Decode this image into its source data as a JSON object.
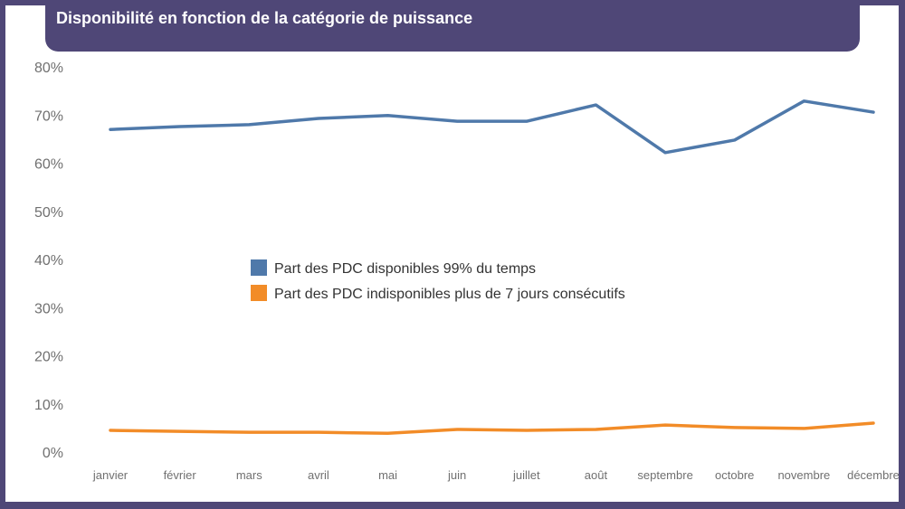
{
  "chart_data": {
    "type": "line",
    "title": "Disponibilité en fonction de la catégorie de puissance",
    "categories": [
      "janvier",
      "février",
      "mars",
      "avril",
      "mai",
      "juin",
      "juillet",
      "août",
      "septembre",
      "octobre",
      "novembre",
      "décembre"
    ],
    "ylim": [
      0,
      80
    ],
    "yticks": [
      "0%",
      "10%",
      "20%",
      "30%",
      "40%",
      "50%",
      "60%",
      "70%",
      "80%"
    ],
    "grid": false,
    "legend_position": "center",
    "series": [
      {
        "name": "Part des PDC disponibles 99% du temps",
        "color": "#4f79aa",
        "values": [
          67.0,
          67.6,
          68.0,
          69.3,
          69.9,
          68.7,
          68.7,
          72.1,
          62.2,
          64.8,
          72.9,
          70.6
        ]
      },
      {
        "name": "Part des PDC indisponibles plus de 7 jours consécutifs",
        "color": "#f28c28",
        "values": [
          4.5,
          4.3,
          4.1,
          4.1,
          3.9,
          4.7,
          4.5,
          4.7,
          5.6,
          5.1,
          4.9,
          6.0
        ]
      }
    ]
  }
}
